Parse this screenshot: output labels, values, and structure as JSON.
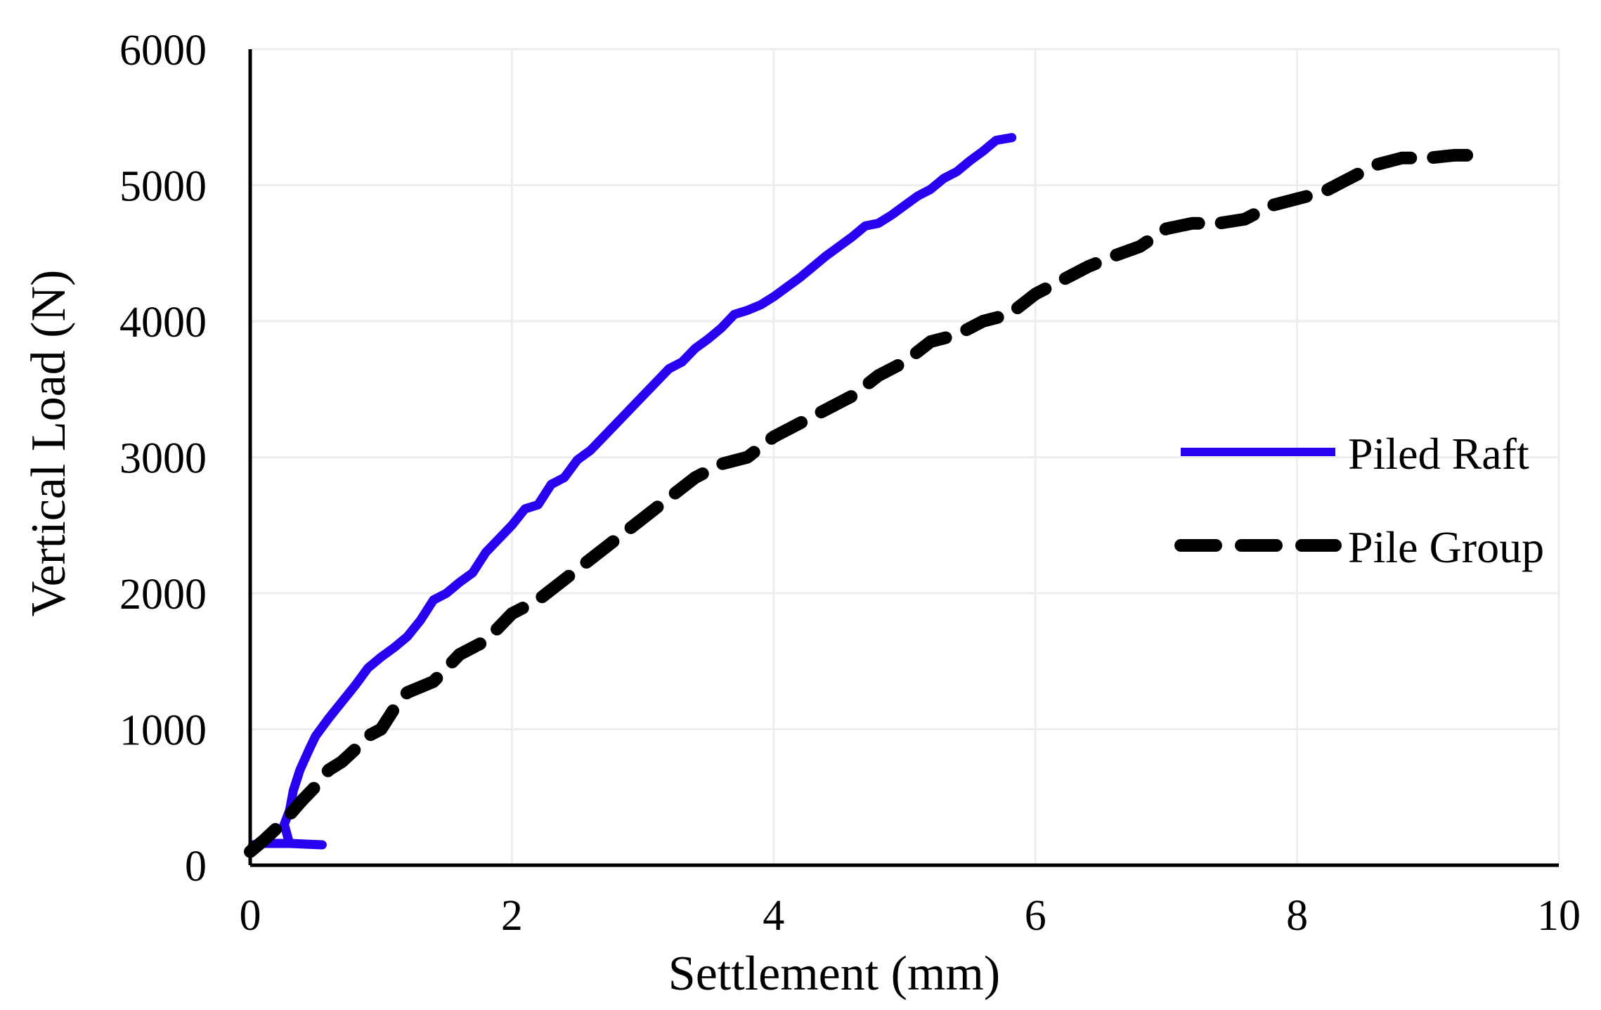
{
  "chart_data": {
    "type": "line",
    "title": "",
    "xlabel": "Settlement (mm)",
    "ylabel": "Vertical Load (N)",
    "xlim": [
      0,
      10
    ],
    "ylim": [
      0,
      6000
    ],
    "x_ticks": [
      0,
      2,
      4,
      6,
      8,
      10
    ],
    "y_ticks": [
      0,
      1000,
      2000,
      3000,
      4000,
      5000,
      6000
    ],
    "x_tick_labels": [
      "0",
      "2",
      "4",
      "6",
      "8",
      "10"
    ],
    "y_tick_labels": [
      "0",
      "1000",
      "2000",
      "3000",
      "4000",
      "5000",
      "6000"
    ],
    "grid": true,
    "legend_position": "right",
    "series": [
      {
        "name": "Piled Raft",
        "color": "#2a00f0",
        "style": "solid",
        "x": [
          0.0,
          0.02,
          0.08,
          0.3,
          0.55,
          0.3,
          0.26,
          0.3,
          0.33,
          0.38,
          0.45,
          0.5,
          0.6,
          0.7,
          0.8,
          0.9,
          1.0,
          1.1,
          1.2,
          1.3,
          1.4,
          1.5,
          1.6,
          1.7,
          1.8,
          1.9,
          2.0,
          2.1,
          2.2,
          2.3,
          2.4,
          2.5,
          2.6,
          2.7,
          2.8,
          2.9,
          3.0,
          3.1,
          3.2,
          3.3,
          3.4,
          3.5,
          3.6,
          3.7,
          3.8,
          3.9,
          4.0,
          4.1,
          4.2,
          4.3,
          4.4,
          4.5,
          4.6,
          4.7,
          4.8,
          4.9,
          5.0,
          5.1,
          5.2,
          5.3,
          5.4,
          5.5,
          5.6,
          5.7,
          5.82
        ],
        "y": [
          100,
          150,
          160,
          160,
          150,
          160,
          300,
          400,
          550,
          700,
          850,
          950,
          1080,
          1200,
          1320,
          1450,
          1530,
          1600,
          1680,
          1800,
          1950,
          2000,
          2080,
          2150,
          2300,
          2400,
          2500,
          2620,
          2650,
          2800,
          2850,
          2980,
          3050,
          3150,
          3250,
          3350,
          3450,
          3550,
          3650,
          3700,
          3800,
          3870,
          3950,
          4050,
          4080,
          4120,
          4180,
          4250,
          4320,
          4400,
          4480,
          4550,
          4620,
          4700,
          4720,
          4780,
          4850,
          4920,
          4970,
          5050,
          5100,
          5180,
          5250,
          5330,
          5350
        ]
      },
      {
        "name": "Pile Group",
        "color": "#000000",
        "style": "dashed",
        "x": [
          0.0,
          0.1,
          0.2,
          0.3,
          0.4,
          0.5,
          0.6,
          0.7,
          0.8,
          0.9,
          1.0,
          1.1,
          1.2,
          1.4,
          1.6,
          1.8,
          2.0,
          2.2,
          2.4,
          2.6,
          2.8,
          3.0,
          3.2,
          3.4,
          3.6,
          3.8,
          4.0,
          4.2,
          4.4,
          4.6,
          4.8,
          5.0,
          5.2,
          5.4,
          5.6,
          5.8,
          6.0,
          6.2,
          6.4,
          6.6,
          6.8,
          7.0,
          7.2,
          7.4,
          7.6,
          7.8,
          8.0,
          8.2,
          8.4,
          8.6,
          8.8,
          9.0,
          9.2,
          9.3
        ],
        "y": [
          100,
          180,
          270,
          370,
          480,
          580,
          700,
          760,
          850,
          950,
          1000,
          1150,
          1270,
          1350,
          1550,
          1650,
          1850,
          1950,
          2100,
          2250,
          2400,
          2550,
          2700,
          2850,
          2950,
          3000,
          3150,
          3250,
          3350,
          3450,
          3600,
          3700,
          3850,
          3900,
          4000,
          4050,
          4200,
          4300,
          4400,
          4480,
          4550,
          4680,
          4720,
          4720,
          4750,
          4850,
          4900,
          4950,
          5050,
          5150,
          5200,
          5200,
          5220,
          5220
        ]
      }
    ]
  }
}
